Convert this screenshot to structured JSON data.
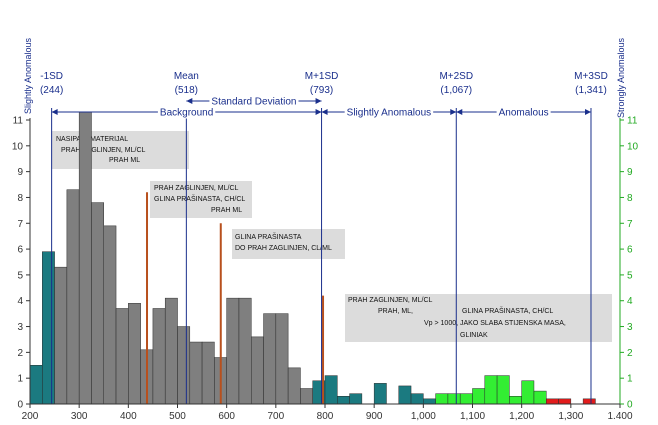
{
  "chart_data": {
    "type": "bar",
    "xlim": [
      200,
      1400
    ],
    "ylim": [
      0,
      11
    ],
    "x_ticks": [
      200,
      300,
      400,
      500,
      600,
      700,
      800,
      900,
      1000,
      1100,
      1200,
      1300,
      1400
    ],
    "x_tick_labels": [
      "200",
      "300",
      "400",
      "500",
      "600",
      "700",
      "800",
      "900",
      "1,000",
      "1,100",
      "1,200",
      "1,300",
      "1.400"
    ],
    "y_ticks": [
      0,
      1,
      2,
      3,
      4,
      5,
      6,
      7,
      8,
      9,
      10,
      11
    ],
    "grid": false,
    "bin_width": 25,
    "bins": [
      {
        "x0": 200,
        "value": 1.5,
        "class": "teal"
      },
      {
        "x0": 225,
        "value": 5.9,
        "class": "teal"
      },
      {
        "x0": 250,
        "value": 5.3,
        "class": "gray"
      },
      {
        "x0": 275,
        "value": 8.3,
        "class": "gray"
      },
      {
        "x0": 300,
        "value": 11.3,
        "class": "gray"
      },
      {
        "x0": 325,
        "value": 7.8,
        "class": "gray"
      },
      {
        "x0": 350,
        "value": 6.9,
        "class": "gray"
      },
      {
        "x0": 375,
        "value": 3.7,
        "class": "gray"
      },
      {
        "x0": 400,
        "value": 3.9,
        "class": "gray"
      },
      {
        "x0": 425,
        "value": 2.1,
        "class": "gray"
      },
      {
        "x0": 450,
        "value": 3.7,
        "class": "gray"
      },
      {
        "x0": 475,
        "value": 4.1,
        "class": "gray"
      },
      {
        "x0": 500,
        "value": 3.0,
        "class": "gray"
      },
      {
        "x0": 525,
        "value": 2.4,
        "class": "gray"
      },
      {
        "x0": 550,
        "value": 2.4,
        "class": "gray"
      },
      {
        "x0": 575,
        "value": 1.8,
        "class": "gray"
      },
      {
        "x0": 600,
        "value": 4.1,
        "class": "gray"
      },
      {
        "x0": 625,
        "value": 4.1,
        "class": "gray"
      },
      {
        "x0": 650,
        "value": 2.6,
        "class": "gray"
      },
      {
        "x0": 675,
        "value": 3.5,
        "class": "gray"
      },
      {
        "x0": 700,
        "value": 3.5,
        "class": "gray"
      },
      {
        "x0": 725,
        "value": 1.4,
        "class": "gray"
      },
      {
        "x0": 750,
        "value": 0.6,
        "class": "gray"
      },
      {
        "x0": 775,
        "value": 0.9,
        "class": "teal"
      },
      {
        "x0": 800,
        "value": 1.1,
        "class": "teal"
      },
      {
        "x0": 825,
        "value": 0.3,
        "class": "teal"
      },
      {
        "x0": 850,
        "value": 0.4,
        "class": "teal"
      },
      {
        "x0": 900,
        "value": 0.8,
        "class": "teal"
      },
      {
        "x0": 950,
        "value": 0.7,
        "class": "teal"
      },
      {
        "x0": 975,
        "value": 0.4,
        "class": "teal"
      },
      {
        "x0": 1000,
        "value": 0.2,
        "class": "teal"
      },
      {
        "x0": 1025,
        "value": 0.4,
        "class": "green"
      },
      {
        "x0": 1050,
        "value": 0.4,
        "class": "green"
      },
      {
        "x0": 1075,
        "value": 0.4,
        "class": "green"
      },
      {
        "x0": 1100,
        "value": 0.6,
        "class": "green"
      },
      {
        "x0": 1125,
        "value": 1.1,
        "class": "green"
      },
      {
        "x0": 1150,
        "value": 1.1,
        "class": "green"
      },
      {
        "x0": 1175,
        "value": 0.3,
        "class": "green"
      },
      {
        "x0": 1200,
        "value": 0.9,
        "class": "green"
      },
      {
        "x0": 1225,
        "value": 0.5,
        "class": "green"
      },
      {
        "x0": 1250,
        "value": 0.2,
        "class": "red"
      },
      {
        "x0": 1275,
        "value": 0.2,
        "class": "red"
      },
      {
        "x0": 1325,
        "value": 0.2,
        "class": "red"
      }
    ],
    "stat_lines": [
      {
        "label": "-1SD",
        "value_label": "(244)",
        "x": 244
      },
      {
        "label": "Mean",
        "value_label": "(518)",
        "x": 518
      },
      {
        "label": "M+1SD",
        "value_label": "(793)",
        "x": 793
      },
      {
        "label": "M+2SD",
        "value_label": "(1,067)",
        "x": 1067
      },
      {
        "label": "M+3SD",
        "value_label": "(1,341)",
        "x": 1341
      }
    ],
    "zones": [
      {
        "label": "Background",
        "from": 244,
        "to": 793
      },
      {
        "label": "Slightly Anomalous",
        "from": 793,
        "to": 1067
      },
      {
        "label": "Anomalous",
        "from": 1067,
        "to": 1341
      }
    ],
    "std_dev": {
      "label": "Standard Deviation",
      "from": 518,
      "to": 793
    },
    "side_labels": {
      "left": "Slightly Anomalous",
      "right": "Strongly Anomalous"
    },
    "markers": [
      {
        "x": 438,
        "height": 8.2
      },
      {
        "x": 588,
        "height": 7.0
      },
      {
        "x": 796,
        "height": 4.2
      }
    ],
    "annotations": [
      {
        "lines": [
          "NASIPANI MATERIJAL",
          "PRAH ZAGLINJEN, ML/CL",
          "PRAH ML"
        ]
      },
      {
        "lines": [
          "PRAH ZAGLINJEN, ML/CL",
          "GLINA PRAŠINASTA, CH/CL",
          "PRAH ML"
        ]
      },
      {
        "lines": [
          "GLINA PRAŠINASTA",
          "DO PRAH ZAGLINJEN, CL/ML"
        ]
      },
      {
        "lines": [
          "PRAH ZAGLINJEN, ML/CL",
          "PRAH, ML,",
          "Vp  > 1000,",
          "GLINA PRAŠINASTA, CH/CL",
          "JAKO SLABA STIJENSKA MASA,",
          "GLINIAK"
        ]
      }
    ],
    "colors": {
      "gray": "#7f7f7f",
      "teal": "#1b7a80",
      "green": "#33ee33",
      "red": "#e21b1b",
      "marker": "#b8501d",
      "stat_line": "#1a2f8c",
      "note_box": "#dcdcdc",
      "left_axis": "#333333",
      "right_axis": "#22aa22"
    }
  }
}
